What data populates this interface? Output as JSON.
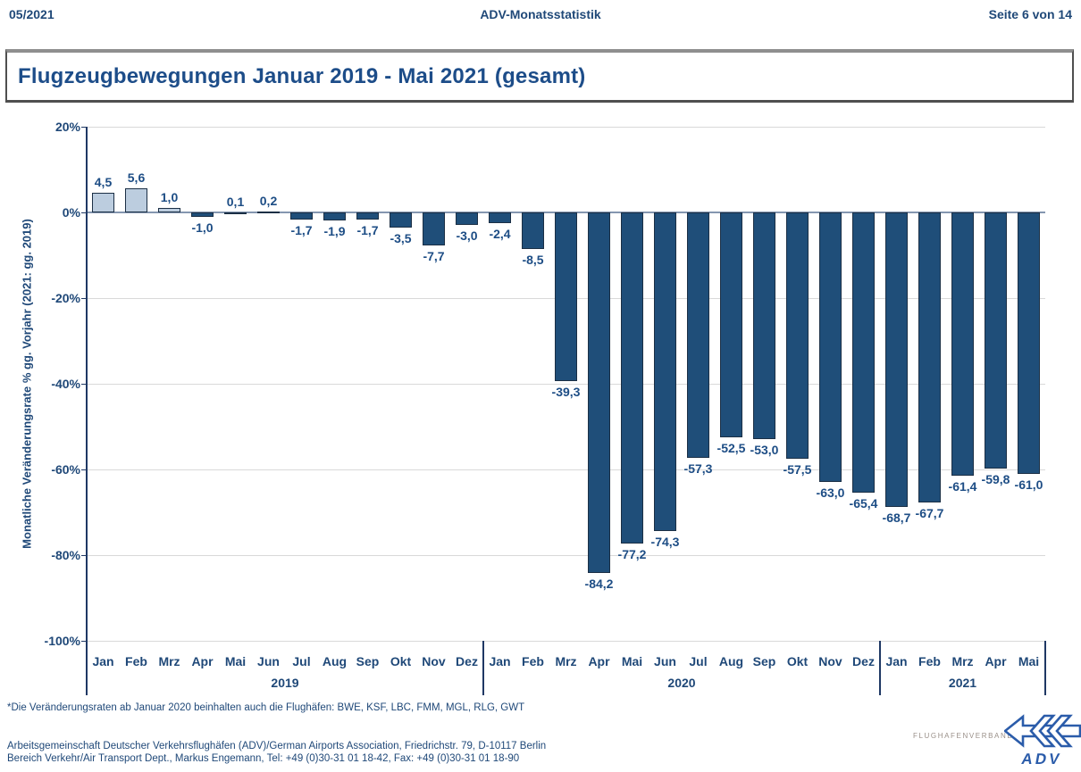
{
  "colors": {
    "text_navy": "#1f4878",
    "title_blue": "#1d4d89",
    "label_blue": "#1d4d85",
    "logo_blue": "#2b5caa",
    "caption_gray": "#9a9089"
  },
  "header": {
    "left_text": "05/2021",
    "center_text": "ADV-Monatsstatistik",
    "right_text": "Seite 6 von 14"
  },
  "title_box": {
    "title": "Flugzeugbewegungen Januar 2019 - Mai 2021 (gesamt)"
  },
  "chart_data": {
    "type": "bar",
    "title": "Flugzeugbewegungen Januar 2019 - Mai 2021 (gesamt)",
    "xlabel": "",
    "ylabel": "Monatliche Veränderungsrate % gg. Vorjahr (2021: gg. 2019)",
    "ylim": [
      -100,
      20
    ],
    "yticks": [
      20,
      0,
      -20,
      -40,
      -60,
      -80,
      -100
    ],
    "ytick_suffix": "%",
    "grid": true,
    "legend": false,
    "decimal_separator": ",",
    "groups": [
      {
        "year": "2019",
        "categories": [
          "Jan",
          "Feb",
          "Mrz",
          "Apr",
          "Mai",
          "Jun",
          "Jul",
          "Aug",
          "Sep",
          "Okt",
          "Nov",
          "Dez"
        ],
        "values": [
          4.5,
          5.6,
          1.0,
          -1.0,
          0.1,
          0.2,
          -1.7,
          -1.9,
          -1.7,
          -3.5,
          -7.7,
          -3.0
        ]
      },
      {
        "year": "2020",
        "categories": [
          "Jan",
          "Feb",
          "Mrz",
          "Apr",
          "Mai",
          "Jun",
          "Jul",
          "Aug",
          "Sep",
          "Okt",
          "Nov",
          "Dez"
        ],
        "values": [
          -2.4,
          -8.5,
          -39.3,
          -84.2,
          -77.2,
          -74.3,
          -57.3,
          -52.5,
          -53.0,
          -57.5,
          -63.0,
          -65.4
        ]
      },
      {
        "year": "2021",
        "categories": [
          "Jan",
          "Feb",
          "Mrz",
          "Apr",
          "Mai"
        ],
        "values": [
          -68.7,
          -67.7,
          -61.4,
          -59.8,
          -61.0
        ]
      }
    ],
    "colors": {
      "bar_positive_fill": "#bccddf",
      "bar_negative_fill": "#1f4e79",
      "bar_border": "#1b2f45",
      "gridline": "#d9d9d9",
      "zero_line": "#8496b0",
      "axis_line": "#1f3864"
    }
  },
  "footnote": "*Die Veränderungsraten ab Januar 2020 beinhalten auch die Flughäfen: BWE, KSF, LBC, FMM, MGL, RLG, GWT",
  "footer": {
    "line1": "Arbeitsgemeinschaft Deutscher Verkehrsflughäfen (ADV)/German Airports Association, Friedrichstr. 79, D-10117 Berlin",
    "line2": "Bereich Verkehr/Air Transport Dept., Markus Engemann, Tel: +49 (0)30-31 01 18-42, Fax: +49 (0)30-31 01 18-90"
  },
  "logo": {
    "caption": "FLUGHAFENVERBAND",
    "wordmark": "ADV"
  }
}
